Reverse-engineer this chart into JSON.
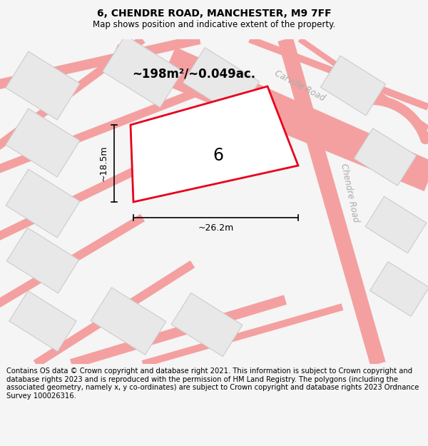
{
  "title": "6, CHENDRE ROAD, MANCHESTER, M9 7FF",
  "subtitle": "Map shows position and indicative extent of the property.",
  "footer": "Contains OS data © Crown copyright and database right 2021. This information is subject to Crown copyright and database rights 2023 and is reproduced with the permission of HM Land Registry. The polygons (including the associated geometry, namely x, y co-ordinates) are subject to Crown copyright and database rights 2023 Ordnance Survey 100026316.",
  "area_label": "~198m²/~0.049ac.",
  "plot_number": "6",
  "dim_width": "~26.2m",
  "dim_height": "~18.5m",
  "bg_color": "#f5f5f5",
  "map_bg": "#f8f8f8",
  "plot_edge": "#e8001c",
  "road_color": "#f4a0a0",
  "road_lw": 1.5,
  "building_fill": "#e8e8e8",
  "building_edge": "#cccccc",
  "road_label_color": "#aaaaaa",
  "title_fontsize": 10,
  "subtitle_fontsize": 8.5,
  "footer_fontsize": 7.2
}
